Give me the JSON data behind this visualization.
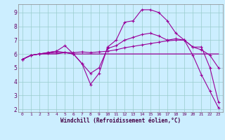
{
  "xlabel": "Windchill (Refroidissement éolien,°C)",
  "bg_color": "#cceeff",
  "grid_color": "#99cccc",
  "line_color": "#990099",
  "xlim": [
    -0.5,
    23.5
  ],
  "ylim": [
    1.8,
    9.6
  ],
  "xticks": [
    0,
    1,
    2,
    3,
    4,
    5,
    6,
    7,
    8,
    9,
    10,
    11,
    12,
    13,
    14,
    15,
    16,
    17,
    18,
    19,
    20,
    21,
    22,
    23
  ],
  "yticks": [
    2,
    3,
    4,
    5,
    6,
    7,
    8,
    9
  ],
  "line1_x": [
    0,
    1,
    2,
    3,
    4,
    5,
    6,
    7,
    8,
    9,
    10,
    11,
    12,
    13,
    14,
    15,
    16,
    17,
    18,
    19,
    20,
    21,
    22,
    23
  ],
  "line1_y": [
    5.6,
    5.9,
    6.0,
    6.0,
    6.0,
    6.1,
    6.0,
    6.0,
    6.0,
    6.0,
    6.0,
    6.0,
    6.0,
    6.0,
    6.0,
    6.0,
    6.0,
    6.0,
    6.0,
    6.0,
    6.0,
    6.0,
    6.0,
    6.0
  ],
  "line2_x": [
    0,
    1,
    2,
    3,
    4,
    5,
    6,
    7,
    8,
    9,
    10,
    11,
    12,
    13,
    14,
    15,
    16,
    17,
    18,
    19,
    20,
    21,
    22,
    23
  ],
  "line2_y": [
    5.6,
    5.9,
    6.0,
    6.1,
    6.2,
    6.1,
    6.0,
    5.3,
    3.8,
    4.6,
    6.5,
    7.0,
    8.3,
    8.4,
    9.2,
    9.2,
    9.0,
    8.4,
    7.5,
    7.0,
    5.9,
    4.5,
    3.3,
    2.1
  ],
  "line3_x": [
    0,
    1,
    2,
    3,
    4,
    5,
    6,
    7,
    8,
    9,
    10,
    11,
    12,
    13,
    14,
    15,
    16,
    17,
    18,
    19,
    20,
    21,
    22,
    23
  ],
  "line3_y": [
    5.6,
    5.9,
    6.0,
    6.1,
    6.2,
    6.6,
    6.0,
    5.3,
    4.6,
    5.0,
    6.4,
    6.6,
    7.0,
    7.2,
    7.4,
    7.5,
    7.3,
    7.0,
    7.1,
    7.0,
    6.5,
    6.5,
    5.0,
    2.5
  ],
  "line4_x": [
    0,
    1,
    2,
    3,
    4,
    5,
    6,
    7,
    8,
    9,
    10,
    11,
    12,
    13,
    14,
    15,
    16,
    17,
    18,
    19,
    20,
    21,
    22,
    23
  ],
  "line4_y": [
    5.6,
    5.9,
    6.0,
    6.05,
    6.1,
    6.1,
    6.1,
    6.15,
    6.1,
    6.15,
    6.2,
    6.3,
    6.45,
    6.55,
    6.65,
    6.75,
    6.85,
    6.95,
    7.0,
    7.0,
    6.5,
    6.3,
    5.9,
    5.0
  ]
}
